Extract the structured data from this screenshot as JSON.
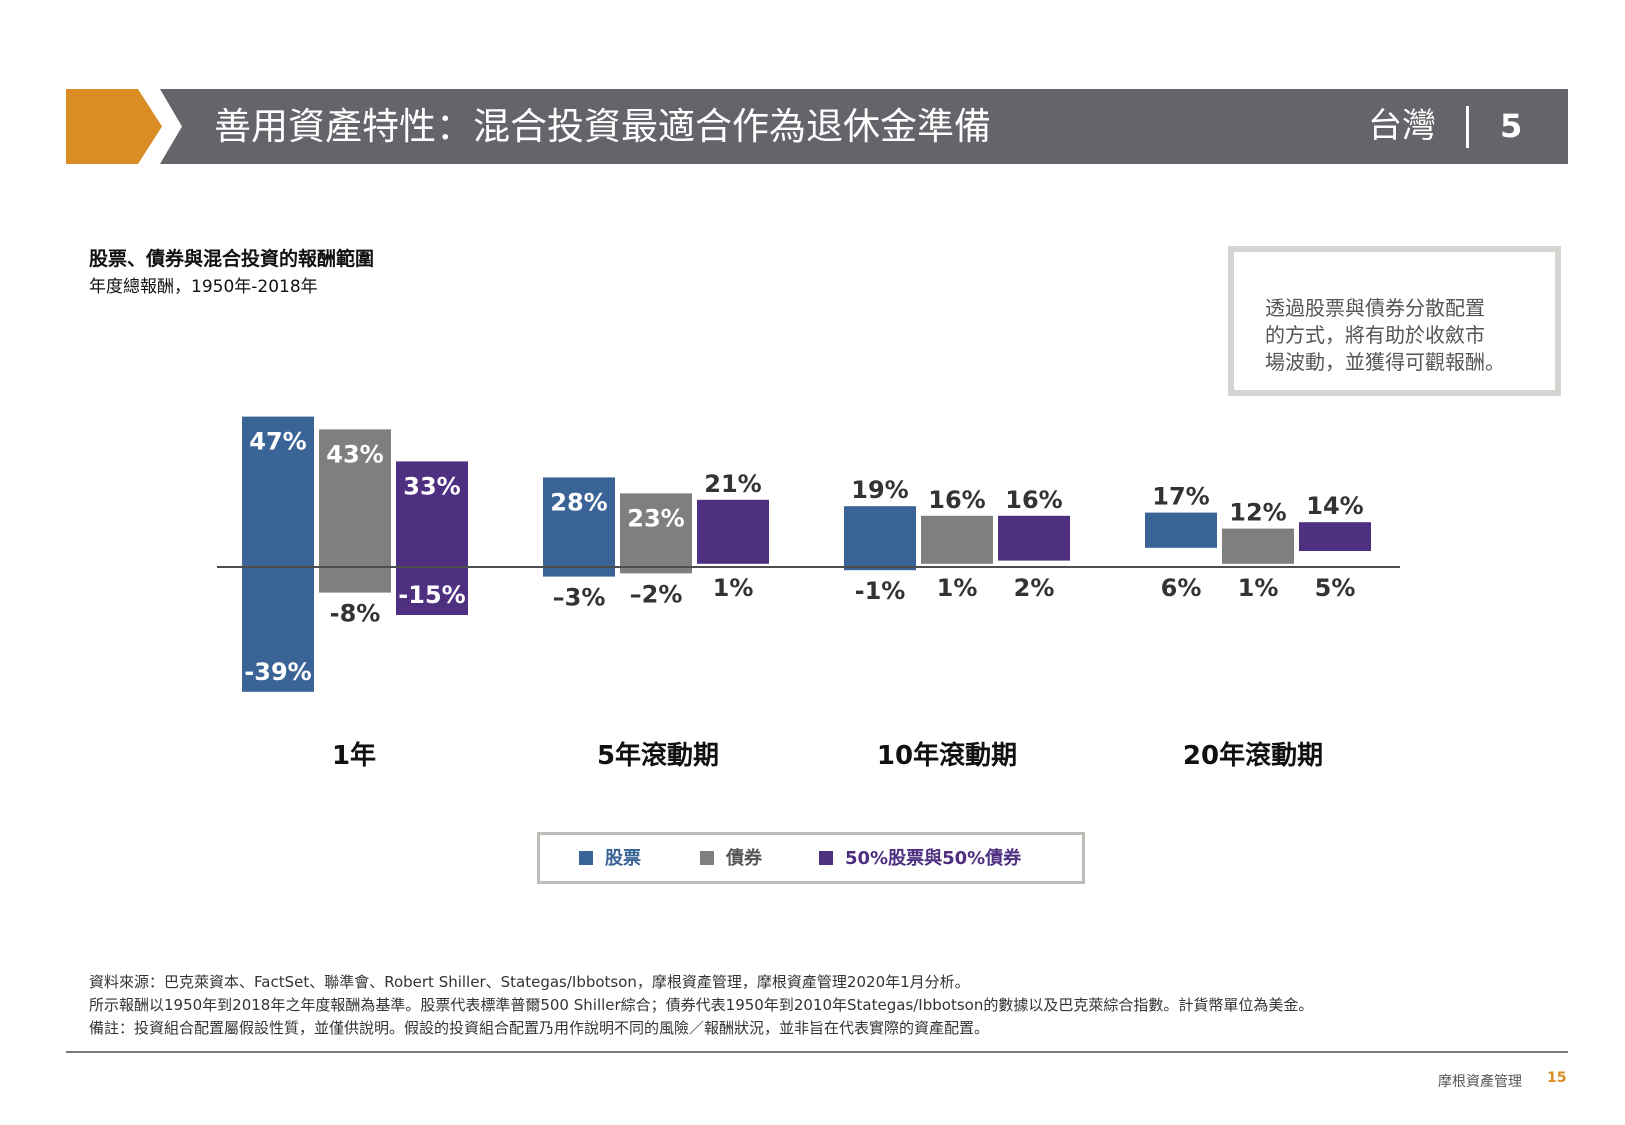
{
  "header": {
    "title": "善用資產特性：混合投資最適合作為退休金準備",
    "region": "台灣",
    "section_number": "5",
    "bar_color": "#64656a",
    "accent_color": "#d98d24"
  },
  "callout": {
    "lines": [
      "透過股票與債券分散配置",
      "的方式，將有助於收斂市",
      "場波動，並獲得可觀報酬。"
    ]
  },
  "chart_data": {
    "type": "bar",
    "title": "股票、債券與混合投資的報酬範圍",
    "subtitle": "年度總報酬，1950年-2018年",
    "unit": "%",
    "categories": [
      "1年",
      "5年滾動期",
      "10年滾動期",
      "20年滾動期"
    ],
    "series": [
      {
        "name": "股票",
        "color": "#3a6496",
        "high": [
          47,
          28,
          19,
          17
        ],
        "low": [
          -39,
          -3,
          -1,
          6
        ],
        "high_labels": [
          "47%",
          "28%",
          "19%",
          "17%"
        ],
        "low_labels": [
          "-39%",
          "–3%",
          "-1%",
          "6%"
        ]
      },
      {
        "name": "債券",
        "color": "#7f7f7d",
        "high": [
          43,
          23,
          16,
          12
        ],
        "low": [
          -8,
          -2,
          1,
          1
        ],
        "high_labels": [
          "43%",
          "23%",
          "16%",
          "12%"
        ],
        "low_labels": [
          "-8%",
          "–2%",
          "1%",
          "1%"
        ]
      },
      {
        "name": "50%股票與50%債券",
        "color": "#4f3080",
        "high": [
          33,
          21,
          16,
          14
        ],
        "low": [
          -15,
          1,
          2,
          5
        ],
        "high_labels": [
          "33%",
          "21%",
          "16%",
          "14%"
        ],
        "low_labels": [
          "-15%",
          "1%",
          "2%",
          "5%"
        ]
      }
    ],
    "legend_position": "bottom-center",
    "grid": false
  },
  "footer": {
    "lines": [
      "資料來源：巴克萊資本、FactSet、聯準會、Robert Shiller、Stategas/Ibbotson，摩根資產管理，摩根資產管理2020年1月分析。",
      "所示報酬以1950年到2018年之年度報酬為基準。股票代表標準普爾500 Shiller綜合；債券代表1950年到2010年Stategas/Ibbotson的數據以及巴克萊綜合指數。計貨幣單位為美金。",
      "備註：投資組合配置屬假設性質，並僅供說明。假設的投資組合配置乃用作說明不同的風險／報酬狀況，並非旨在代表實際的資產配置。"
    ],
    "brand": "摩根資產管理",
    "page_number": "15"
  }
}
